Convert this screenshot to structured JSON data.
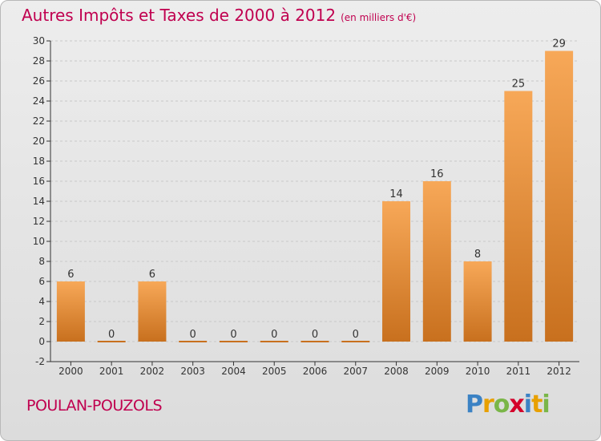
{
  "title": {
    "main": "Autres Impôts et Taxes de 2000 à 2012",
    "unit": "(en milliers d'€)"
  },
  "commune": "POULAN-POUZOLS",
  "brand": {
    "letters": [
      "P",
      "r",
      "o",
      "x",
      "i",
      "t",
      "i"
    ],
    "colors": [
      "#3b82c4",
      "#e8a000",
      "#7ab648",
      "#d4002a",
      "#3b82c4",
      "#e8a000",
      "#7ab648"
    ]
  },
  "chart_data": {
    "type": "bar",
    "title": "Autres Impôts et Taxes de 2000 à 2012",
    "subtitle": "(en milliers d'€)",
    "xlabel": "",
    "ylabel": "",
    "categories": [
      "2000",
      "2001",
      "2002",
      "2003",
      "2004",
      "2005",
      "2006",
      "2007",
      "2008",
      "2009",
      "2010",
      "2011",
      "2012"
    ],
    "values": [
      6,
      0,
      6,
      0,
      0,
      0,
      0,
      0,
      14,
      16,
      8,
      25,
      29
    ],
    "ylim": [
      -2,
      30
    ],
    "yticks": [
      -2,
      0,
      2,
      4,
      6,
      8,
      10,
      12,
      14,
      16,
      18,
      20,
      22,
      24,
      26,
      28,
      30
    ],
    "grid": "horizontal dashed",
    "colors": {
      "bar_light": "#f7a858",
      "bar_dark": "#c8701e",
      "axis": "#333333",
      "grid": "#c8c8c8"
    }
  }
}
